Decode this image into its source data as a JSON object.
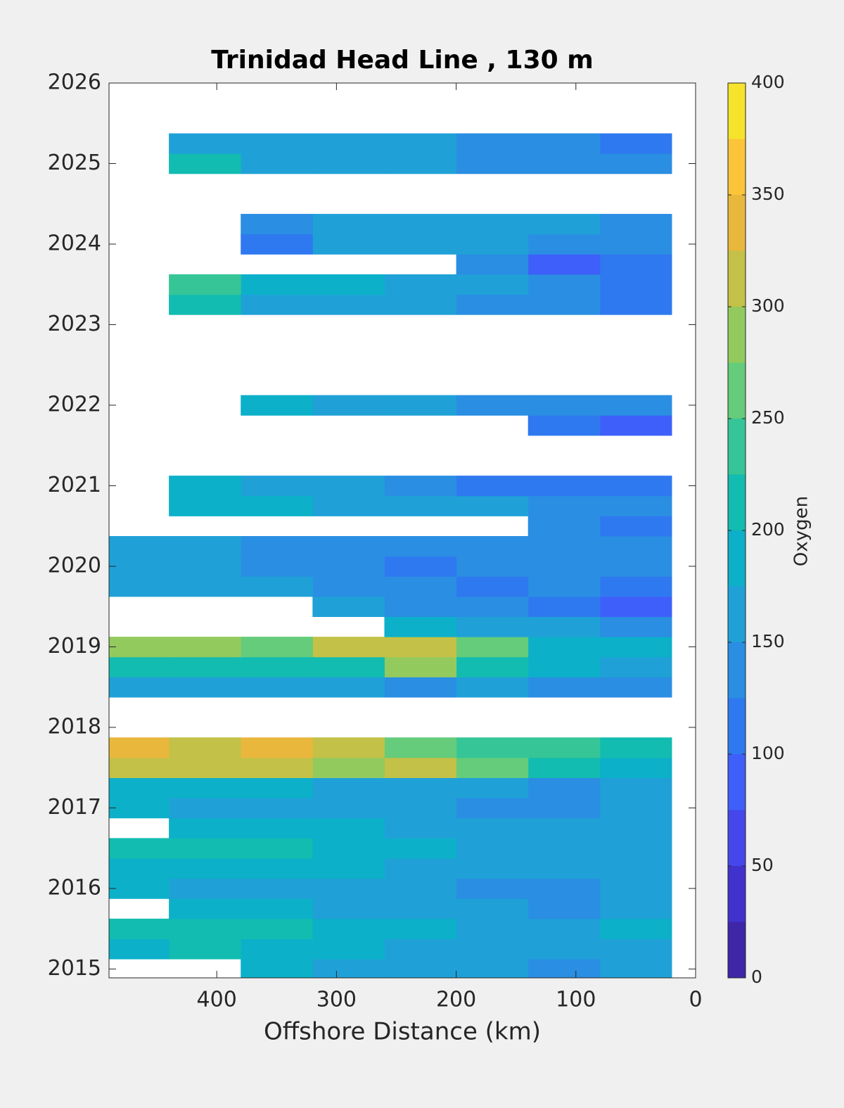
{
  "chart_data": {
    "type": "contour",
    "title": "Trinidad Head Line , 130 m",
    "xlabel": "Offshore Distance (km)",
    "colorbar_label": "Oxygen",
    "x": [
      50,
      110,
      170,
      230,
      290,
      350,
      410,
      470
    ],
    "y": [
      2015,
      2015.25,
      2015.5,
      2015.75,
      2016,
      2016.25,
      2016.5,
      2016.75,
      2017,
      2017.25,
      2017.5,
      2017.75,
      2018,
      2018.25,
      2018.5,
      2018.75,
      2019,
      2019.25,
      2019.5,
      2019.75,
      2020,
      2020.25,
      2020.5,
      2020.75,
      2021,
      2021.25,
      2021.5,
      2021.75,
      2022,
      2022.25,
      2022.5,
      2022.75,
      2023,
      2023.25,
      2023.5,
      2023.75,
      2024,
      2024.25,
      2024.5,
      2024.75,
      2025,
      2025.25
    ],
    "z": [
      [
        150,
        140,
        150,
        160,
        170,
        180,
        null,
        null
      ],
      [
        160,
        150,
        160,
        170,
        180,
        190,
        200,
        190
      ],
      [
        180,
        170,
        170,
        180,
        190,
        200,
        210,
        210
      ],
      [
        150,
        140,
        150,
        160,
        170,
        180,
        190,
        null
      ],
      [
        150,
        130,
        140,
        160,
        160,
        170,
        170,
        180
      ],
      [
        160,
        150,
        160,
        170,
        180,
        180,
        190,
        190
      ],
      [
        170,
        160,
        170,
        180,
        190,
        200,
        200,
        210
      ],
      [
        160,
        150,
        160,
        170,
        180,
        190,
        190,
        null
      ],
      [
        150,
        140,
        130,
        150,
        160,
        170,
        170,
        180
      ],
      [
        160,
        140,
        160,
        170,
        170,
        180,
        180,
        180
      ],
      [
        190,
        210,
        260,
        300,
        290,
        310,
        320,
        300
      ],
      [
        200,
        230,
        240,
        260,
        300,
        330,
        320,
        340
      ],
      [
        null,
        null,
        null,
        null,
        null,
        null,
        null,
        null
      ],
      [
        null,
        null,
        null,
        null,
        null,
        null,
        null,
        null
      ],
      [
        130,
        140,
        150,
        140,
        150,
        150,
        160,
        160
      ],
      [
        170,
        180,
        220,
        280,
        210,
        200,
        200,
        210
      ],
      [
        180,
        190,
        250,
        320,
        300,
        270,
        290,
        280
      ],
      [
        130,
        150,
        170,
        190,
        null,
        null,
        null,
        null
      ],
      [
        90,
        120,
        130,
        140,
        150,
        null,
        null,
        null
      ],
      [
        120,
        130,
        120,
        130,
        140,
        150,
        160,
        170
      ],
      [
        130,
        130,
        130,
        120,
        130,
        140,
        150,
        160
      ],
      [
        130,
        140,
        130,
        130,
        140,
        140,
        150,
        150
      ],
      [
        120,
        130,
        null,
        null,
        null,
        null,
        null,
        null
      ],
      [
        130,
        140,
        150,
        160,
        170,
        180,
        190,
        null
      ],
      [
        110,
        110,
        110,
        130,
        150,
        170,
        190,
        null
      ],
      [
        null,
        null,
        null,
        null,
        null,
        null,
        null,
        null
      ],
      [
        null,
        null,
        null,
        null,
        null,
        null,
        null,
        null
      ],
      [
        80,
        100,
        null,
        null,
        null,
        null,
        null,
        null
      ],
      [
        140,
        140,
        130,
        150,
        170,
        180,
        null,
        null
      ],
      [
        null,
        null,
        null,
        null,
        null,
        null,
        null,
        null
      ],
      [
        null,
        null,
        null,
        null,
        null,
        null,
        null,
        null
      ],
      [
        null,
        null,
        null,
        null,
        null,
        null,
        null,
        null
      ],
      [
        null,
        null,
        null,
        null,
        null,
        null,
        null,
        null
      ],
      [
        120,
        130,
        140,
        150,
        160,
        170,
        200,
        null
      ],
      [
        120,
        130,
        160,
        170,
        180,
        190,
        230,
        null
      ],
      [
        110,
        90,
        130,
        null,
        null,
        null,
        null,
        null
      ],
      [
        130,
        140,
        150,
        150,
        160,
        120,
        null,
        null
      ],
      [
        140,
        150,
        150,
        160,
        160,
        140,
        null,
        null
      ],
      [
        null,
        null,
        null,
        null,
        null,
        null,
        null,
        null
      ],
      [
        null,
        null,
        null,
        null,
        null,
        null,
        null,
        null
      ],
      [
        130,
        140,
        140,
        150,
        160,
        170,
        200,
        null
      ],
      [
        120,
        130,
        140,
        150,
        160,
        170,
        160,
        null
      ]
    ],
    "xlim": [
      490,
      0
    ],
    "ylim": [
      2014.89,
      2026
    ],
    "xticks": [
      0,
      100,
      200,
      300,
      400
    ],
    "yticks": [
      2015,
      2016,
      2017,
      2018,
      2019,
      2020,
      2021,
      2022,
      2023,
      2024,
      2025,
      2026
    ],
    "clim": [
      0,
      400
    ],
    "cticks": [
      0,
      50,
      100,
      150,
      200,
      250,
      300,
      350,
      400
    ],
    "levels": [
      0,
      25,
      50,
      75,
      100,
      125,
      150,
      175,
      200,
      225,
      250,
      275,
      300,
      325,
      350,
      375,
      400
    ],
    "colors": [
      "#3e26a8",
      "#4232cd",
      "#4547ea",
      "#3e5ff9",
      "#2f79f0",
      "#2a8ee3",
      "#1fa1d8",
      "#0cb0c9",
      "#12bcb0",
      "#36c597",
      "#64cc7a",
      "#93ca5e",
      "#c3c147",
      "#e9b73c",
      "#fcc438",
      "#f5e32c"
    ]
  }
}
